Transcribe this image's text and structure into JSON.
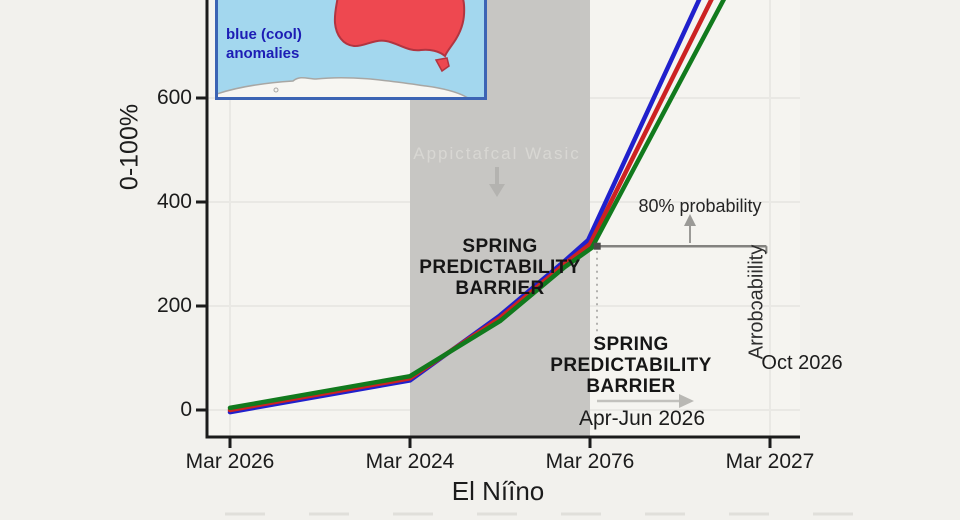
{
  "colors": {
    "background": "#f2f1ed",
    "plot_bg": "#f5f4f0",
    "band": "#c7c6c3",
    "axis": "#1b1b1b",
    "gridline": "#e9e8e4",
    "annotation_line": "#83827f",
    "arrow_gray": "#9b9a97",
    "arrow_light": "#b4b3b0",
    "arrow_lighter": "#c2c1bd",
    "bottom_dashes": "#e0dfda"
  },
  "inset": {
    "label_line1": "blue (cool)",
    "label_line2": "anomalies",
    "label_color": "#1d1db5",
    "water_color": "#a3d7ee",
    "border_color": "#3c64b4",
    "land_color": "#ee4850",
    "land_stroke": "#b23440",
    "antarctica_color": "#f7f6f2",
    "antarctica_stroke": "#a8a7a4"
  },
  "axes": {
    "ylabel": "0-100%",
    "xlabel": "El Níîno",
    "y_ticks": [
      "600",
      "400",
      "200",
      "0"
    ],
    "x_ticks": [
      "Mar 2026",
      "Mar 2024",
      "Mar 2076",
      "Mar 2027"
    ]
  },
  "chart_data": {
    "type": "line",
    "xlabel": "El Níîno",
    "ylabel": "0-100%",
    "x_tick_labels": [
      "Mar 2026",
      "Mar 2024",
      "Mar 2076",
      "Mar 2027"
    ],
    "y_tick_values": [
      0,
      200,
      400,
      600
    ],
    "ylim": [
      -52,
      840
    ],
    "x_note": "x expressed in tick-index units: 0=Mar 2026, 1=Mar 2024, 2=Mar 2076, 3=Mar 2027",
    "grid": "faint",
    "legend": "none",
    "shaded_band_x": [
      1,
      2
    ],
    "series": [
      {
        "name": "blue",
        "color": "#2020cc",
        "points": [
          [
            0,
            -4
          ],
          [
            1,
            57
          ],
          [
            1.5,
            182
          ],
          [
            1.86,
            287
          ],
          [
            1.99,
            327
          ],
          [
            2.63,
            807
          ]
        ]
      },
      {
        "name": "red",
        "color": "#cc2222",
        "points": [
          [
            0,
            0
          ],
          [
            1,
            61
          ],
          [
            1.5,
            177
          ],
          [
            1.86,
            281
          ],
          [
            2.0,
            319
          ],
          [
            2.7,
            807
          ]
        ]
      },
      {
        "name": "green",
        "color": "#117a1d",
        "points": [
          [
            0,
            4
          ],
          [
            1,
            65
          ],
          [
            1.5,
            171
          ],
          [
            1.86,
            275
          ],
          [
            2.01,
            312
          ],
          [
            2.77,
            807
          ]
        ]
      }
    ],
    "probability_level_line": {
      "y_value": 315,
      "x_from": 2.04,
      "x_to": 2.98
    }
  },
  "annotations": {
    "barrier_band": {
      "line1": "SPRING",
      "line2": "PREDICTABILITY",
      "line3": "BARRIER"
    },
    "barrier_lower": {
      "line1": "SPRING",
      "line2": "PREDICTABILITY",
      "line3": "BARRIER"
    },
    "watermark": "Appictafcal Wasic",
    "probability_label": "80% probability",
    "rotated_label": "Arrobɔabiility",
    "oct_label": "Oct 2026",
    "apr_jun_label": "Apr-Jun 2026"
  }
}
